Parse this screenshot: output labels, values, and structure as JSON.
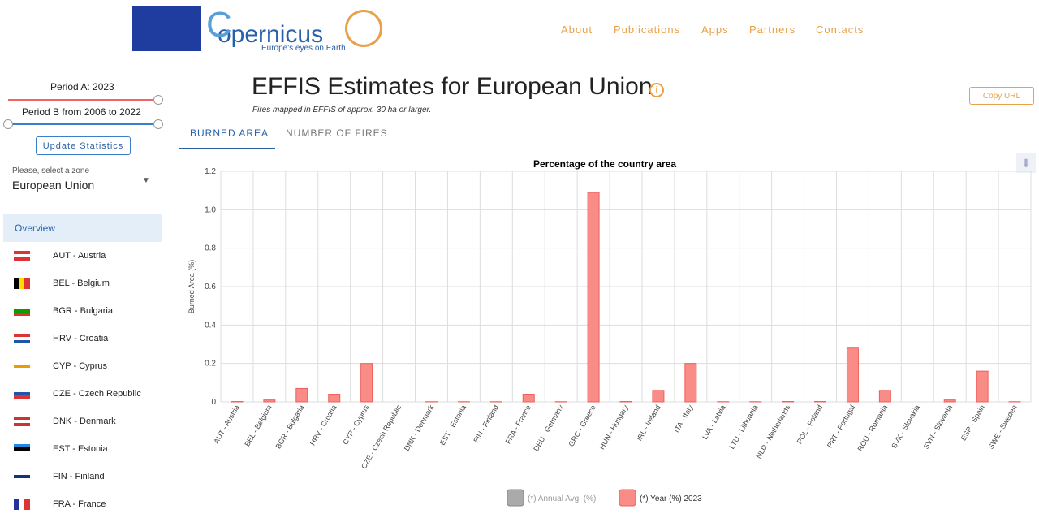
{
  "header": {
    "brand": "opernicus",
    "tagline": "Europe's eyes on Earth",
    "nav": [
      "About",
      "Publications",
      "Apps",
      "Partners",
      "Contacts"
    ]
  },
  "sidebar": {
    "period_a": "Period A: 2023",
    "period_b": "Period B from 2006 to 2022",
    "update": "Update Statistics",
    "zone_hint": "Please, select a zone",
    "zone": "European Union",
    "overview": "Overview",
    "zones": [
      "AUT - Austria",
      "BEL - Belgium",
      "BGR - Bulgaria",
      "HRV - Croatia",
      "CYP - Cyprus",
      "CZE - Czech Republic",
      "DNK - Denmark",
      "EST - Estonia",
      "FIN - Finland",
      "FRA - France"
    ]
  },
  "main": {
    "title": "EFFIS Estimates for European Union",
    "subtitle": "Fires mapped in EFFIS of approx. 30 ha or larger.",
    "copy": "Copy URL",
    "tabs": [
      "BURNED AREA",
      "NUMBER OF FIRES"
    ]
  },
  "chart_data": {
    "type": "bar",
    "title": "Percentage of the country area",
    "y_label": "Burned Area (%)",
    "categories": [
      "AUT - Austria",
      "BEL - Belgium",
      "BGR - Bulgaria",
      "HRV - Croatia",
      "CYP - Cyprus",
      "CZE - Czech Republic",
      "DNK - Denmark",
      "EST - Estonia",
      "FIN - Finland",
      "FRA - France",
      "DEU - Germany",
      "GRC - Greece",
      "HUN - Hungary",
      "IRL - Ireland",
      "ITA - Italy",
      "LVA - Latvia",
      "LTU - Lithuania",
      "NLD - Netherlands",
      "POL - Poland",
      "PRT - Portugal",
      "ROU - Romania",
      "SVK - Slovakia",
      "SVN - Slovenia",
      "ESP - Spain",
      "SWE - Sweden"
    ],
    "series": [
      {
        "name": "(*) Year (%) 2023",
        "color": "#fa8c88",
        "values": [
          0.002,
          0.01,
          0.07,
          0.04,
          0.2,
          0,
          0.001,
          0.001,
          0.001,
          0.04,
          0.001,
          1.09,
          0.002,
          0.06,
          0.2,
          0.001,
          0.001,
          0.002,
          0.002,
          0.28,
          0.06,
          0,
          0.01,
          0.16,
          0.001
        ]
      }
    ],
    "hidden_series": [
      {
        "name": "(*) Annual Avg. (%)",
        "color": "#aaaaaa"
      }
    ],
    "ylim": [
      0,
      1.2
    ],
    "yticks": [
      0,
      0.2,
      0.4,
      0.6,
      0.8,
      {
        "value": 1,
        "label": "1.0"
      },
      1.2
    ],
    "grid": true
  }
}
